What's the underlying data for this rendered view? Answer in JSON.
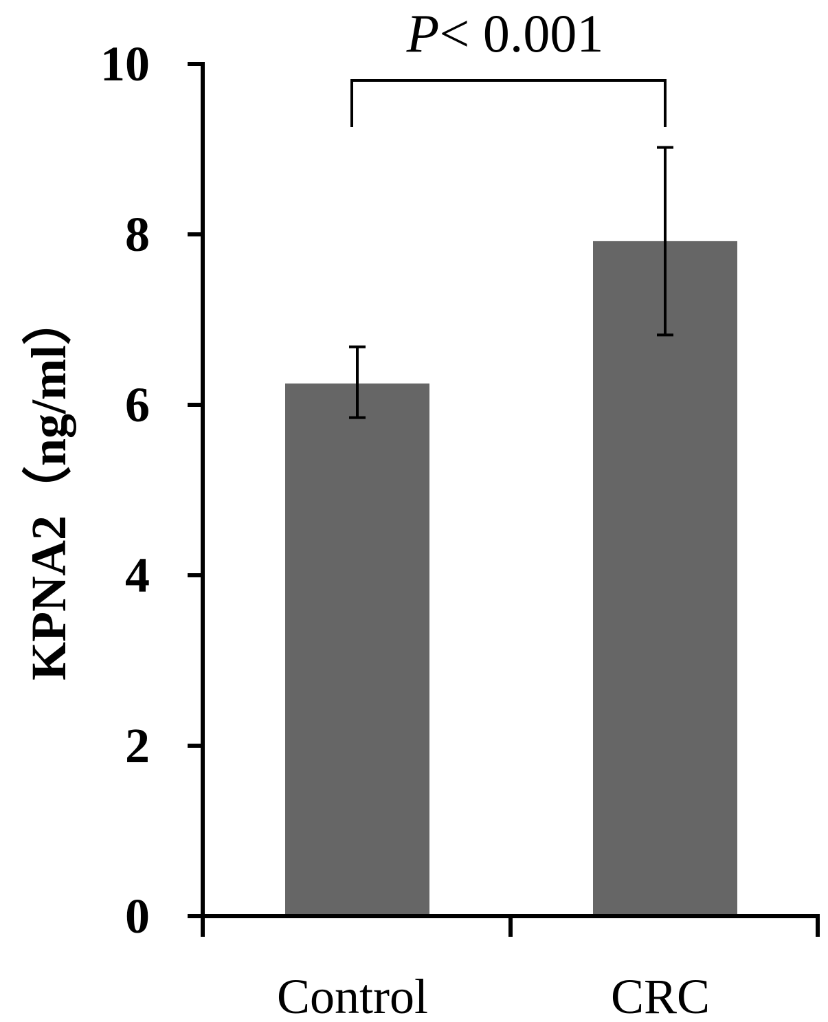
{
  "chart_data": {
    "type": "bar",
    "categories": [
      "Control",
      "CRC"
    ],
    "values": [
      6.25,
      7.92
    ],
    "errors": [
      {
        "low": 5.85,
        "high": 6.68
      },
      {
        "low": 6.82,
        "high": 9.02
      }
    ],
    "title": "",
    "xlabel": "",
    "ylabel": "KPNA2（ng/ml）",
    "ylim": [
      0,
      10
    ],
    "yticks": [
      0,
      2,
      4,
      6,
      8,
      10
    ],
    "bar_color": "#666666",
    "grid": false,
    "legend": "none",
    "significance": {
      "between": [
        "Control",
        "CRC"
      ],
      "label_italic": "P",
      "label_rest": "< 0.001"
    }
  }
}
